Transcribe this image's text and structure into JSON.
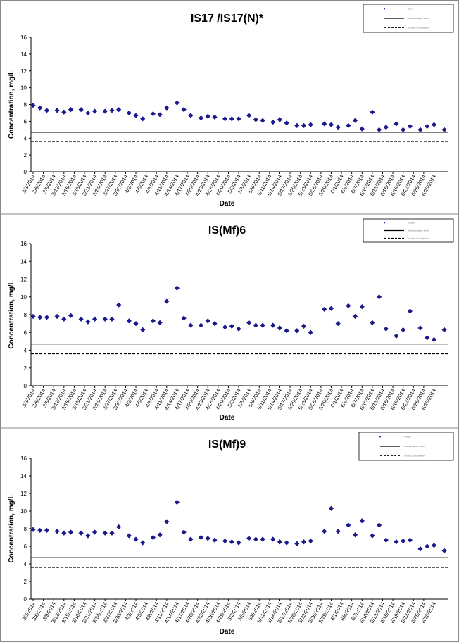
{
  "chart_data": [
    {
      "type": "scatter",
      "title": "IS17 /IS17(N)*",
      "xlabel": "Date",
      "ylabel": "Concentration, mg/L",
      "ylim": [
        0,
        16
      ],
      "yticks": [
        "0",
        "2",
        "4",
        "6",
        "8",
        "10",
        "12",
        "14",
        "16"
      ],
      "xticks": [
        "3/3/2014",
        "3/6/2014",
        "3/9/2014",
        "3/12/2014",
        "3/15/2014",
        "3/18/2014",
        "3/21/2014",
        "3/24/2014",
        "3/27/2014",
        "3/30/2014",
        "4/2/2014",
        "4/5/2014",
        "4/8/2014",
        "4/11/2014",
        "4/14/2014",
        "4/17/2014",
        "4/20/2014",
        "4/23/2014",
        "4/26/2014",
        "4/29/2014",
        "5/2/2014",
        "5/5/2014",
        "5/8/2014",
        "5/11/2014",
        "5/14/2014",
        "5/17/2014",
        "5/20/2014",
        "5/23/2014",
        "5/26/2014",
        "5/29/2014",
        "6/1/2014",
        "6/4/2014",
        "6/7/2014",
        "6/10/2014",
        "6/13/2014",
        "6/16/2014",
        "6/19/2014",
        "6/22/2014",
        "6/25/2014",
        "6/28/2014"
      ],
      "x": [
        "3/3/2014",
        "3/5/2014",
        "3/7/2014",
        "3/10/2014",
        "3/12/2014",
        "3/14/2014",
        "3/17/2014",
        "3/19/2014",
        "3/21/2014",
        "3/24/2014",
        "3/26/2014",
        "3/28/2014",
        "3/31/2014",
        "4/2/2014",
        "4/4/2014",
        "4/7/2014",
        "4/9/2014",
        "4/11/2014",
        "4/14/2014",
        "4/16/2014",
        "4/18/2014",
        "4/21/2014",
        "4/23/2014",
        "4/25/2014",
        "4/28/2014",
        "4/30/2014",
        "5/2/2014",
        "5/5/2014",
        "5/7/2014",
        "5/9/2014",
        "5/12/2014",
        "5/14/2014",
        "5/16/2014",
        "5/19/2014",
        "5/21/2014",
        "5/23/2014",
        "5/27/2014",
        "5/29/2014",
        "5/31/2014",
        "6/3/2014",
        "6/5/2014",
        "6/7/2014",
        "6/10/2014",
        "6/12/2014",
        "6/14/2014",
        "6/17/2014",
        "6/19/2014",
        "6/21/2014",
        "6/24/2014",
        "6/26/2014",
        "6/28/2014",
        "7/1/2014"
      ],
      "y": [
        7.9,
        7.6,
        7.3,
        7.3,
        7.1,
        7.4,
        7.4,
        7.0,
        7.2,
        7.2,
        7.3,
        7.4,
        7.0,
        6.7,
        6.3,
        6.9,
        6.8,
        7.6,
        8.2,
        7.4,
        6.7,
        6.4,
        6.6,
        6.5,
        6.3,
        6.3,
        6.3,
        6.7,
        6.2,
        6.1,
        5.9,
        6.2,
        5.8,
        5.5,
        5.5,
        5.6,
        5.7,
        5.6,
        5.3,
        5.5,
        6.1,
        5.1,
        7.1,
        5.0,
        5.3,
        5.7,
        5.0,
        5.4,
        5.0,
        5.4,
        5.6,
        5.0
      ],
      "hlines": [
        4.7,
        3.6
      ],
      "legend": {
        "position": "top-right",
        "entries": [
          "IS17",
          "Antidegradation Level",
          "Limiting Concentration"
        ]
      }
    },
    {
      "type": "scatter",
      "title": "IS(Mf)6",
      "xlabel": "Date",
      "ylabel": "Concentration, mg/L",
      "ylim": [
        0,
        16
      ],
      "yticks": [
        "0",
        "2",
        "4",
        "6",
        "8",
        "10",
        "12",
        "14",
        "16"
      ],
      "xticks": [
        "3/3/2014",
        "3/6/2014",
        "3/9/2014",
        "3/12/2014",
        "3/15/2014",
        "3/18/2014",
        "3/21/2014",
        "3/24/2014",
        "3/27/2014",
        "3/30/2014",
        "4/2/2014",
        "4/5/2014",
        "4/8/2014",
        "4/11/2014",
        "4/14/2014",
        "4/17/2014",
        "4/20/2014",
        "4/23/2014",
        "4/26/2014",
        "4/29/2014",
        "5/2/2014",
        "5/5/2014",
        "5/8/2014",
        "5/11/2014",
        "5/14/2014",
        "5/17/2014",
        "5/20/2014",
        "5/23/2014",
        "5/26/2014",
        "5/29/2014",
        "6/1/2014",
        "6/4/2014",
        "6/7/2014",
        "6/10/2014",
        "6/13/2014",
        "6/16/2014",
        "6/19/2014",
        "6/22/2014",
        "6/25/2014",
        "6/28/2014"
      ],
      "x": [
        "3/3/2014",
        "3/5/2014",
        "3/7/2014",
        "3/10/2014",
        "3/12/2014",
        "3/14/2014",
        "3/17/2014",
        "3/19/2014",
        "3/21/2014",
        "3/24/2014",
        "3/26/2014",
        "3/28/2014",
        "3/31/2014",
        "4/2/2014",
        "4/4/2014",
        "4/7/2014",
        "4/9/2014",
        "4/11/2014",
        "4/14/2014",
        "4/16/2014",
        "4/18/2014",
        "4/21/2014",
        "4/23/2014",
        "4/25/2014",
        "4/28/2014",
        "4/30/2014",
        "5/2/2014",
        "5/5/2014",
        "5/7/2014",
        "5/9/2014",
        "5/12/2014",
        "5/14/2014",
        "5/16/2014",
        "5/19/2014",
        "5/21/2014",
        "5/23/2014",
        "5/27/2014",
        "5/29/2014",
        "5/31/2014",
        "6/3/2014",
        "6/5/2014",
        "6/7/2014",
        "6/10/2014",
        "6/12/2014",
        "6/14/2014",
        "6/17/2014",
        "6/19/2014",
        "6/21/2014",
        "6/24/2014",
        "6/26/2014",
        "6/28/2014",
        "7/1/2014"
      ],
      "y": [
        7.8,
        7.7,
        7.7,
        7.8,
        7.5,
        7.9,
        7.5,
        7.2,
        7.5,
        7.5,
        7.5,
        9.1,
        7.3,
        7.0,
        6.3,
        7.3,
        7.1,
        9.5,
        11.0,
        7.6,
        6.8,
        6.8,
        7.3,
        7.0,
        6.6,
        6.7,
        6.4,
        7.1,
        6.8,
        6.8,
        6.8,
        6.5,
        6.2,
        6.2,
        6.7,
        6.0,
        8.6,
        8.7,
        7.0,
        9.0,
        7.8,
        8.9,
        7.1,
        10.0,
        6.4,
        5.6,
        6.3,
        8.4,
        6.5,
        5.4,
        5.2,
        6.3
      ],
      "hlines": [
        4.7,
        3.6
      ],
      "legend": {
        "position": "top-right",
        "entries": [
          "IS(Mf)6",
          "Antidegradation Level",
          "Limiting Concentration"
        ]
      }
    },
    {
      "type": "scatter",
      "title": "IS(Mf)9",
      "xlabel": "Date",
      "ylabel": "Concentration, mg/L",
      "ylim": [
        0,
        16
      ],
      "yticks": [
        "0",
        "2",
        "4",
        "6",
        "8",
        "10",
        "12",
        "14",
        "16"
      ],
      "xticks": [
        "3/3/2014",
        "3/6/2014",
        "3/9/2014",
        "3/12/2014",
        "3/15/2014",
        "3/18/2014",
        "3/21/2014",
        "3/24/2014",
        "3/27/2014",
        "3/30/2014",
        "4/2/2014",
        "4/5/2014",
        "4/8/2014",
        "4/11/2014",
        "4/14/2014",
        "4/17/2014",
        "4/20/2014",
        "4/23/2014",
        "4/26/2014",
        "4/29/2014",
        "5/2/2014",
        "5/5/2014",
        "5/8/2014",
        "5/11/2014",
        "5/14/2014",
        "5/17/2014",
        "5/20/2014",
        "5/23/2014",
        "5/26/2014",
        "5/29/2014",
        "6/1/2014",
        "6/4/2014",
        "6/7/2014",
        "6/10/2014",
        "6/13/2014",
        "6/16/2014",
        "6/19/2014",
        "6/22/2014",
        "6/25/2014",
        "6/28/2014"
      ],
      "x": [
        "3/3/2014",
        "3/5/2014",
        "3/7/2014",
        "3/10/2014",
        "3/12/2014",
        "3/14/2014",
        "3/17/2014",
        "3/19/2014",
        "3/21/2014",
        "3/24/2014",
        "3/26/2014",
        "3/28/2014",
        "3/31/2014",
        "4/2/2014",
        "4/4/2014",
        "4/7/2014",
        "4/9/2014",
        "4/11/2014",
        "4/14/2014",
        "4/16/2014",
        "4/18/2014",
        "4/21/2014",
        "4/23/2014",
        "4/25/2014",
        "4/28/2014",
        "4/30/2014",
        "5/2/2014",
        "5/5/2014",
        "5/7/2014",
        "5/9/2014",
        "5/12/2014",
        "5/14/2014",
        "5/16/2014",
        "5/19/2014",
        "5/21/2014",
        "5/23/2014",
        "5/27/2014",
        "5/29/2014",
        "5/31/2014",
        "6/3/2014",
        "6/5/2014",
        "6/7/2014",
        "6/10/2014",
        "6/12/2014",
        "6/14/2014",
        "6/17/2014",
        "6/19/2014",
        "6/21/2014",
        "6/24/2014",
        "6/26/2014",
        "6/28/2014",
        "7/1/2014"
      ],
      "y": [
        7.9,
        7.8,
        7.8,
        7.7,
        7.5,
        7.6,
        7.5,
        7.2,
        7.6,
        7.5,
        7.5,
        8.2,
        7.2,
        6.8,
        6.4,
        7.0,
        7.3,
        8.8,
        11.0,
        7.6,
        6.8,
        7.0,
        6.9,
        6.7,
        6.6,
        6.5,
        6.4,
        6.9,
        6.8,
        6.8,
        6.8,
        6.5,
        6.4,
        6.3,
        6.5,
        6.6,
        7.7,
        10.3,
        7.7,
        8.4,
        7.3,
        8.9,
        7.2,
        8.4,
        6.7,
        6.5,
        6.6,
        6.7,
        5.7,
        6.0,
        6.1,
        5.5
      ],
      "hlines": [
        4.7,
        3.6
      ],
      "legend": {
        "position": "top-right",
        "entries": [
          "IS(Mf)9",
          "Antidegradation Level",
          "Limiting Concentration"
        ]
      }
    }
  ],
  "colors": {
    "marker": "#1a1a8c",
    "line": "#000000",
    "frame": "#888888"
  }
}
